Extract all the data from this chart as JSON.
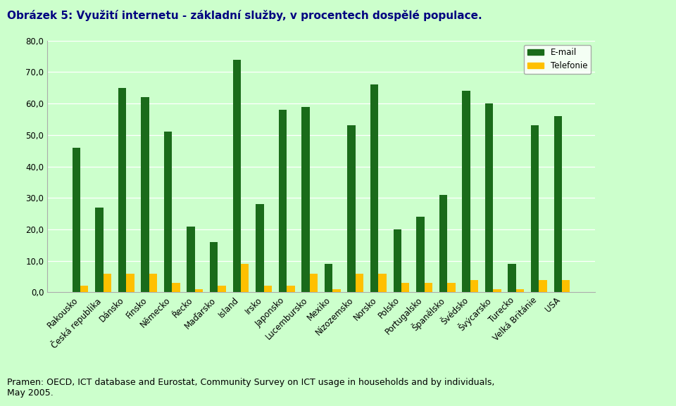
{
  "title": "Obrázek 5: Využití internetu - základní služby, v procentech dospělé populace.",
  "footnote": "Pramen: OECD, ICT database and Eurostat, Community Survey on ICT usage in households and by individuals,\nMay 2005.",
  "categories": [
    "Rakousko",
    "Česká republika",
    "Dánsko",
    "Finsko",
    "Německo",
    "Řecko",
    "Maďarsko",
    "Island",
    "Irsko",
    "Japonsko",
    "Lucembursko",
    "Mexiko",
    "Nizozemsko",
    "Norsko",
    "Polsko",
    "Portugalsko",
    "Španělsko",
    "Švédsko",
    "Švýcarsko",
    "Turecko",
    "Velká Británie",
    "USA"
  ],
  "email": [
    46,
    27,
    65,
    62,
    51,
    21,
    16,
    74,
    28,
    58,
    59,
    9,
    53,
    66,
    20,
    24,
    31,
    64,
    60,
    9,
    53,
    56
  ],
  "telefonie": [
    2,
    6,
    6,
    6,
    3,
    1,
    2,
    9,
    2,
    2,
    6,
    1,
    6,
    6,
    3,
    3,
    3,
    4,
    1,
    1,
    4,
    4
  ],
  "email_color": "#1a6b1a",
  "telefonie_color": "#ffc000",
  "plot_area_bg": "#ccffcc",
  "outer_bg": "#ccffcc",
  "ylim": [
    0,
    80
  ],
  "yticks": [
    0,
    10,
    20,
    30,
    40,
    50,
    60,
    70,
    80
  ],
  "ytick_labels": [
    "0,0",
    "10,0",
    "20,0",
    "30,0",
    "40,0",
    "50,0",
    "60,0",
    "70,0",
    "80,0"
  ],
  "legend_email": "E-mail",
  "legend_telefonie": "Telefonie",
  "title_color": "#000080",
  "title_fontsize": 11,
  "tick_fontsize": 8.5,
  "footnote_fontsize": 9
}
